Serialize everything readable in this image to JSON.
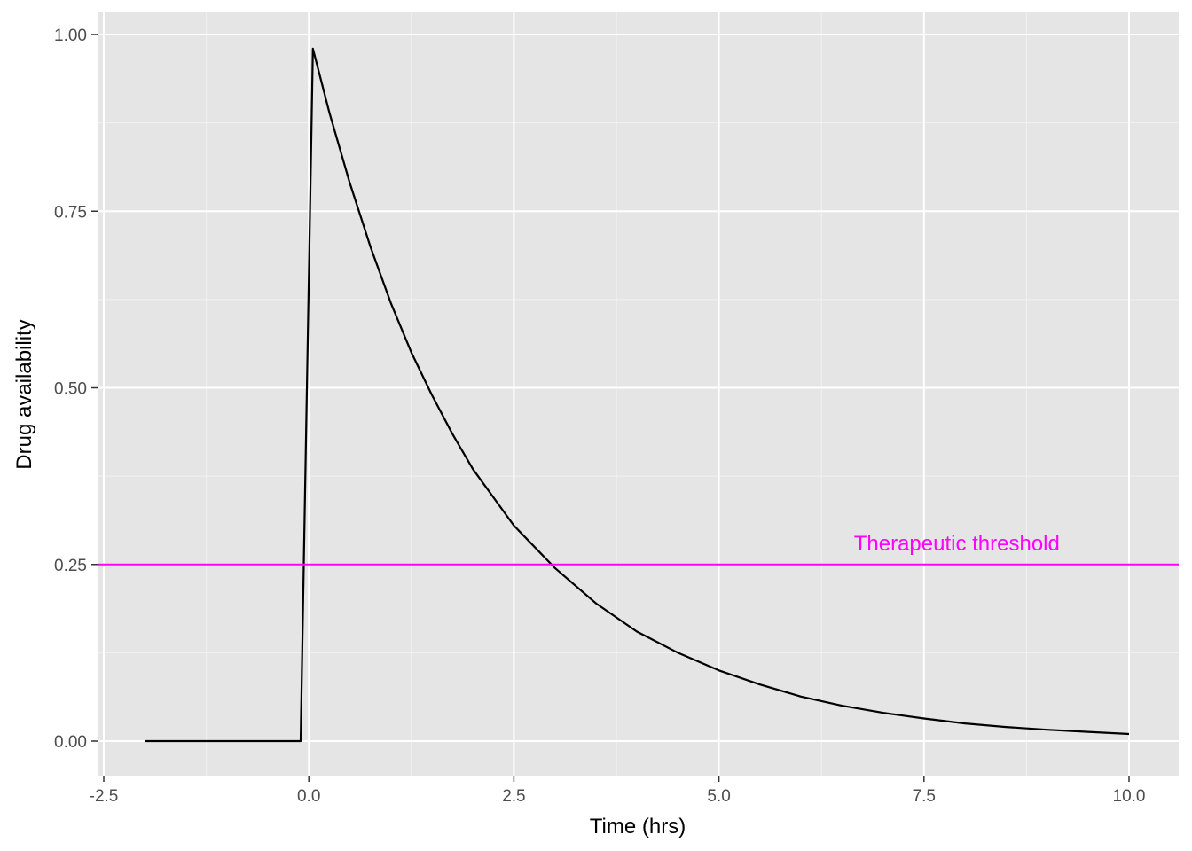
{
  "chart_data": {
    "type": "line",
    "xlabel": "Time (hrs)",
    "ylabel": "Drug availability",
    "xlim": [
      -2.5,
      10.0
    ],
    "ylim": [
      0.0,
      1.0
    ],
    "x_ticks": [
      -2.5,
      0.0,
      2.5,
      5.0,
      7.5,
      10.0
    ],
    "x_tick_labels": [
      "-2.5",
      "0.0",
      "2.5",
      "5.0",
      "7.5",
      "10.0"
    ],
    "y_ticks": [
      0.0,
      0.25,
      0.5,
      0.75,
      1.0
    ],
    "y_tick_labels": [
      "0.00",
      "0.25",
      "0.50",
      "0.75",
      "1.00"
    ],
    "grid": true,
    "series": [
      {
        "color": "#000000",
        "x": [
          -2.0,
          -0.1,
          0.05,
          0.25,
          0.5,
          0.75,
          1.0,
          1.25,
          1.5,
          1.75,
          2.0,
          2.25,
          2.5,
          2.75,
          3.0,
          3.5,
          4.0,
          4.5,
          5.0,
          5.5,
          6.0,
          6.5,
          7.0,
          7.5,
          8.0,
          8.5,
          9.0,
          9.5,
          10.0
        ],
        "y": [
          0.0,
          0.0,
          0.98,
          0.89,
          0.79,
          0.7,
          0.62,
          0.55,
          0.49,
          0.435,
          0.385,
          0.345,
          0.305,
          0.275,
          0.245,
          0.195,
          0.155,
          0.125,
          0.1,
          0.08,
          0.063,
          0.05,
          0.04,
          0.032,
          0.025,
          0.02,
          0.016,
          0.013,
          0.01
        ]
      }
    ],
    "hlines": [
      {
        "y": 0.25,
        "color": "#ff00ff",
        "label": "Therapeutic threshold",
        "label_x": 7.9
      }
    ]
  }
}
